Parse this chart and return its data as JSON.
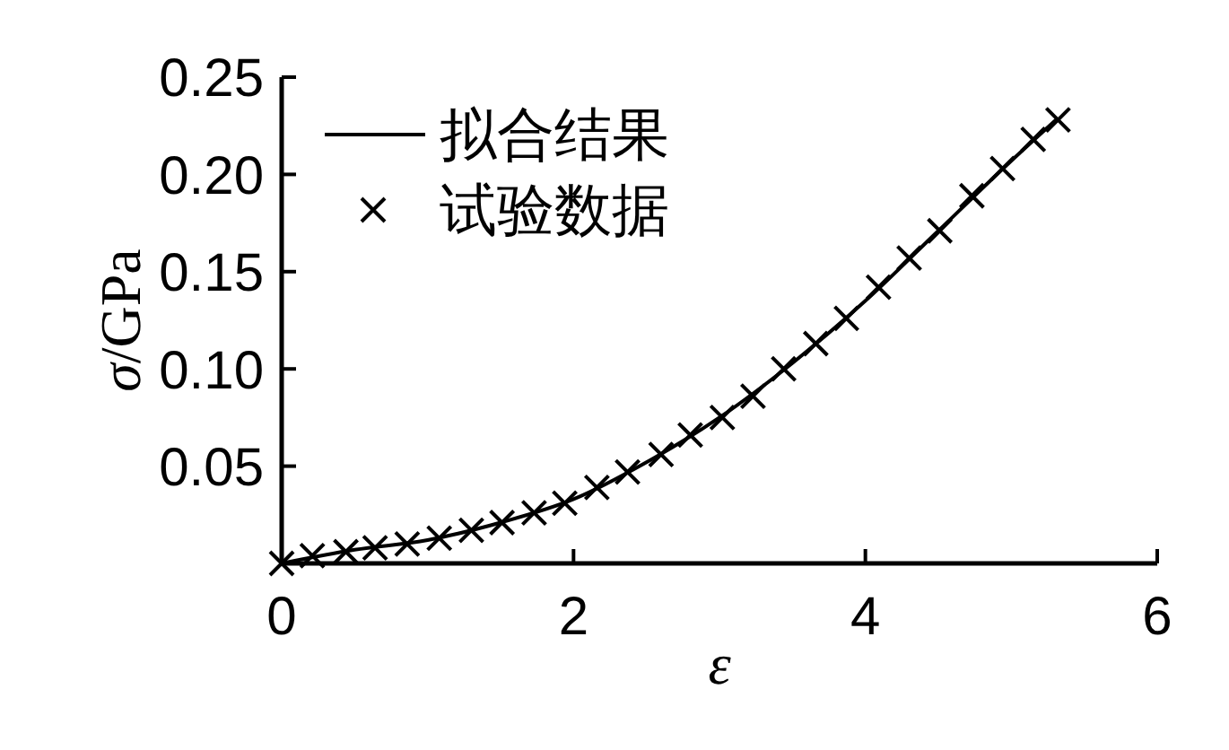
{
  "chart_data": {
    "type": "scatter",
    "xlabel": "ε",
    "ylabel": "σ/GPa",
    "xlim": [
      0,
      6
    ],
    "ylim": [
      0,
      0.25
    ],
    "xticks": [
      0,
      2,
      4,
      6
    ],
    "yticks": [
      0.05,
      {
        "value": 0.1,
        "label": "0.10"
      },
      0.15,
      {
        "value": 0.2,
        "label": "0.20"
      },
      0.25
    ],
    "legend": "top left",
    "series": [
      {
        "name": "拟合结果",
        "type": "line",
        "color": "#000000",
        "line_style": "solid",
        "marker": "none",
        "x": [
          0,
          0.5,
          1,
          1.5,
          2,
          2.5,
          3,
          3.5,
          4,
          4.5,
          5,
          5.32
        ],
        "values": [
          0,
          0.007,
          0.012,
          0.021,
          0.033,
          0.052,
          0.075,
          0.103,
          0.135,
          0.171,
          0.207,
          0.229
        ]
      },
      {
        "name": "试验数据",
        "color": "#000000",
        "marker": "cross",
        "x": [
          0,
          0.21,
          0.44,
          0.64,
          0.86,
          1.08,
          1.3,
          1.51,
          1.73,
          1.94,
          2.16,
          2.37,
          2.6,
          2.8,
          3.02,
          3.23,
          3.44,
          3.66,
          3.87,
          4.09,
          4.3,
          4.51,
          4.73,
          4.94,
          5.15,
          5.32
        ],
        "values": [
          0,
          0.004,
          0.006,
          0.008,
          0.01,
          0.013,
          0.017,
          0.021,
          0.026,
          0.031,
          0.039,
          0.047,
          0.056,
          0.066,
          0.075,
          0.086,
          0.1,
          0.113,
          0.126,
          0.142,
          0.157,
          0.171,
          0.189,
          0.203,
          0.218,
          0.228
        ]
      }
    ]
  }
}
